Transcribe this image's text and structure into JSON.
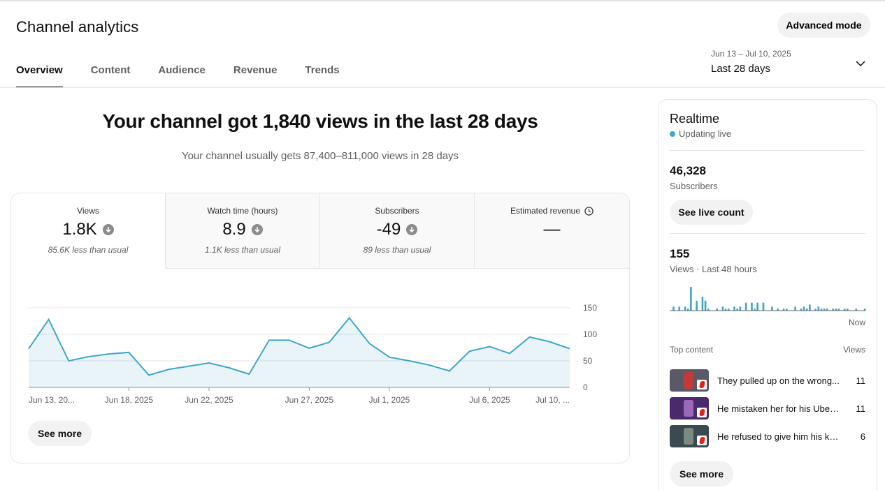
{
  "page": {
    "title": "Channel analytics",
    "advanced_mode": "Advanced mode"
  },
  "tabs": [
    "Overview",
    "Content",
    "Audience",
    "Revenue",
    "Trends"
  ],
  "date_range": {
    "range": "Jun 13 – Jul 10, 2025",
    "preset": "Last 28 days"
  },
  "summary": {
    "headline": "Your channel got 1,840 views in the last 28 days",
    "typical": "Your channel usually gets 87,400–811,000 views in 28 days"
  },
  "metrics": [
    {
      "label": "Views",
      "value": "1.8K",
      "note": "85.6K less than usual",
      "trend": "down"
    },
    {
      "label": "Watch time (hours)",
      "value": "8.9",
      "note": "1.1K less than usual",
      "trend": "down"
    },
    {
      "label": "Subscribers",
      "value": "-49",
      "note": "89 less than usual",
      "trend": "down"
    },
    {
      "label": "Estimated revenue",
      "value": "—",
      "note": "",
      "icon": "clock-icon"
    }
  ],
  "chart_data": {
    "type": "area",
    "x": [
      "Jun 13",
      "Jun 14",
      "Jun 15",
      "Jun 16",
      "Jun 17",
      "Jun 18",
      "Jun 19",
      "Jun 20",
      "Jun 21",
      "Jun 22",
      "Jun 23",
      "Jun 24",
      "Jun 25",
      "Jun 26",
      "Jun 27",
      "Jun 28",
      "Jun 29",
      "Jun 30",
      "Jul 1",
      "Jul 2",
      "Jul 3",
      "Jul 4",
      "Jul 5",
      "Jul 6",
      "Jul 7",
      "Jul 8",
      "Jul 9",
      "Jul 10"
    ],
    "values": [
      73,
      128,
      50,
      58,
      63,
      66,
      23,
      34,
      40,
      46,
      37,
      25,
      89,
      89,
      74,
      85,
      131,
      83,
      57,
      50,
      42,
      31,
      68,
      77,
      64,
      95,
      86,
      73
    ],
    "tick_labels": [
      "Jun 13, 20...",
      "Jun 18, 2025",
      "Jun 22, 2025",
      "Jun 27, 2025",
      "Jul 1, 2025",
      "Jul 6, 2025",
      "Jul 10, ..."
    ],
    "y_ticks": [
      "150",
      "100",
      "50",
      "0"
    ],
    "ylim": [
      0,
      150
    ],
    "color": "#3ea6c8"
  },
  "see_more": "See more",
  "realtime": {
    "title": "Realtime",
    "status": "Updating live",
    "subscribers": "46,328",
    "subscribers_label": "Subscribers",
    "live_count": "See live count",
    "views": "155",
    "views_label": "Views · Last 48 hours",
    "hourly_views": [
      0,
      2,
      0,
      2,
      0,
      2,
      1,
      12,
      0,
      5,
      0,
      7,
      5,
      1,
      0,
      0,
      1,
      0,
      2,
      1,
      1,
      0,
      2,
      1,
      2,
      0,
      4,
      0,
      4,
      1,
      4,
      0,
      4,
      0,
      0,
      2,
      0,
      1,
      0,
      1,
      1,
      0,
      0,
      2,
      0,
      1,
      2,
      1,
      3,
      0,
      1,
      2,
      1,
      1,
      1,
      0,
      1,
      1,
      1,
      0,
      1,
      1,
      0,
      0,
      1,
      0,
      0,
      1
    ],
    "now_label": "Now",
    "top_content_label": "Top content",
    "views_col": "Views",
    "top_content": [
      {
        "title": "They pulled up on the wrong...",
        "views": "11"
      },
      {
        "title": "He mistaken her for his Uber...",
        "views": "11"
      },
      {
        "title": "He refused to give him his ke...",
        "views": "6"
      }
    ],
    "see_more": "See more"
  }
}
